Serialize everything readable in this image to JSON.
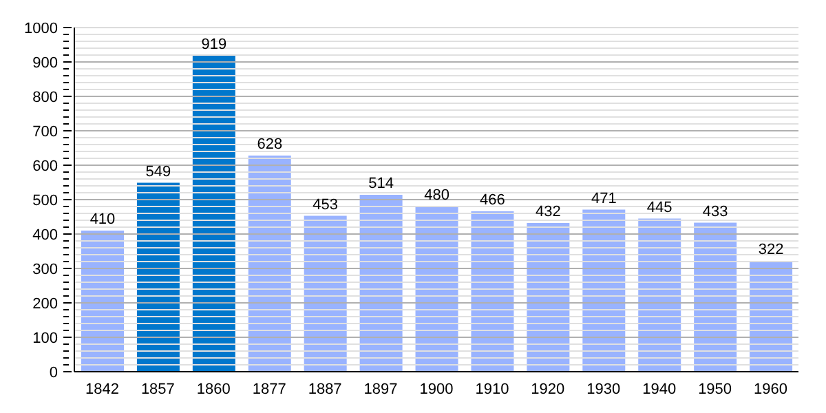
{
  "chart_data": {
    "type": "bar",
    "categories": [
      "1842",
      "1857",
      "1860",
      "1877",
      "1887",
      "1897",
      "1900",
      "1910",
      "1920",
      "1930",
      "1940",
      "1950",
      "1960"
    ],
    "values": [
      410,
      549,
      919,
      628,
      453,
      514,
      480,
      466,
      432,
      471,
      445,
      433,
      322
    ],
    "colors": [
      "#99b3ff",
      "#0077cc",
      "#0077cc",
      "#99b3ff",
      "#99b3ff",
      "#99b3ff",
      "#99b3ff",
      "#99b3ff",
      "#99b3ff",
      "#99b3ff",
      "#99b3ff",
      "#99b3ff",
      "#99b3ff"
    ],
    "ylim": [
      0,
      1000
    ],
    "yticks": [
      0,
      {
        "value": 20,
        "label": null
      },
      {
        "value": 40,
        "label": null
      },
      {
        "value": 60,
        "label": null
      },
      {
        "value": 80,
        "label": null
      },
      100,
      {
        "value": 120,
        "label": null
      },
      {
        "value": 140,
        "label": null
      },
      {
        "value": 160,
        "label": null
      },
      {
        "value": 180,
        "label": null
      },
      200,
      {
        "value": 220,
        "label": null
      },
      {
        "value": 240,
        "label": null
      },
      {
        "value": 260,
        "label": null
      },
      {
        "value": 280,
        "label": null
      },
      300,
      {
        "value": 320,
        "label": null
      },
      {
        "value": 340,
        "label": null
      },
      {
        "value": 360,
        "label": null
      },
      {
        "value": 380,
        "label": null
      },
      400,
      {
        "value": 420,
        "label": null
      },
      {
        "value": 440,
        "label": null
      },
      {
        "value": 460,
        "label": null
      },
      {
        "value": 480,
        "label": null
      },
      500,
      {
        "value": 520,
        "label": null
      },
      {
        "value": 540,
        "label": null
      },
      {
        "value": 560,
        "label": null
      },
      {
        "value": 580,
        "label": null
      },
      600,
      {
        "value": 620,
        "label": null
      },
      {
        "value": 640,
        "label": null
      },
      {
        "value": 660,
        "label": null
      },
      {
        "value": 680,
        "label": null
      },
      700,
      {
        "value": 720,
        "label": null
      },
      {
        "value": 740,
        "label": null
      },
      {
        "value": 760,
        "label": null
      },
      {
        "value": 780,
        "label": null
      },
      800,
      {
        "value": 820,
        "label": null
      },
      {
        "value": 840,
        "label": null
      },
      {
        "value": 860,
        "label": null
      },
      {
        "value": 880,
        "label": null
      },
      900,
      {
        "value": 920,
        "label": null
      },
      {
        "value": 940,
        "label": null
      },
      {
        "value": 960,
        "label": null
      },
      {
        "value": 980,
        "label": null
      },
      1000
    ],
    "grid": "y",
    "data_labels": true
  }
}
